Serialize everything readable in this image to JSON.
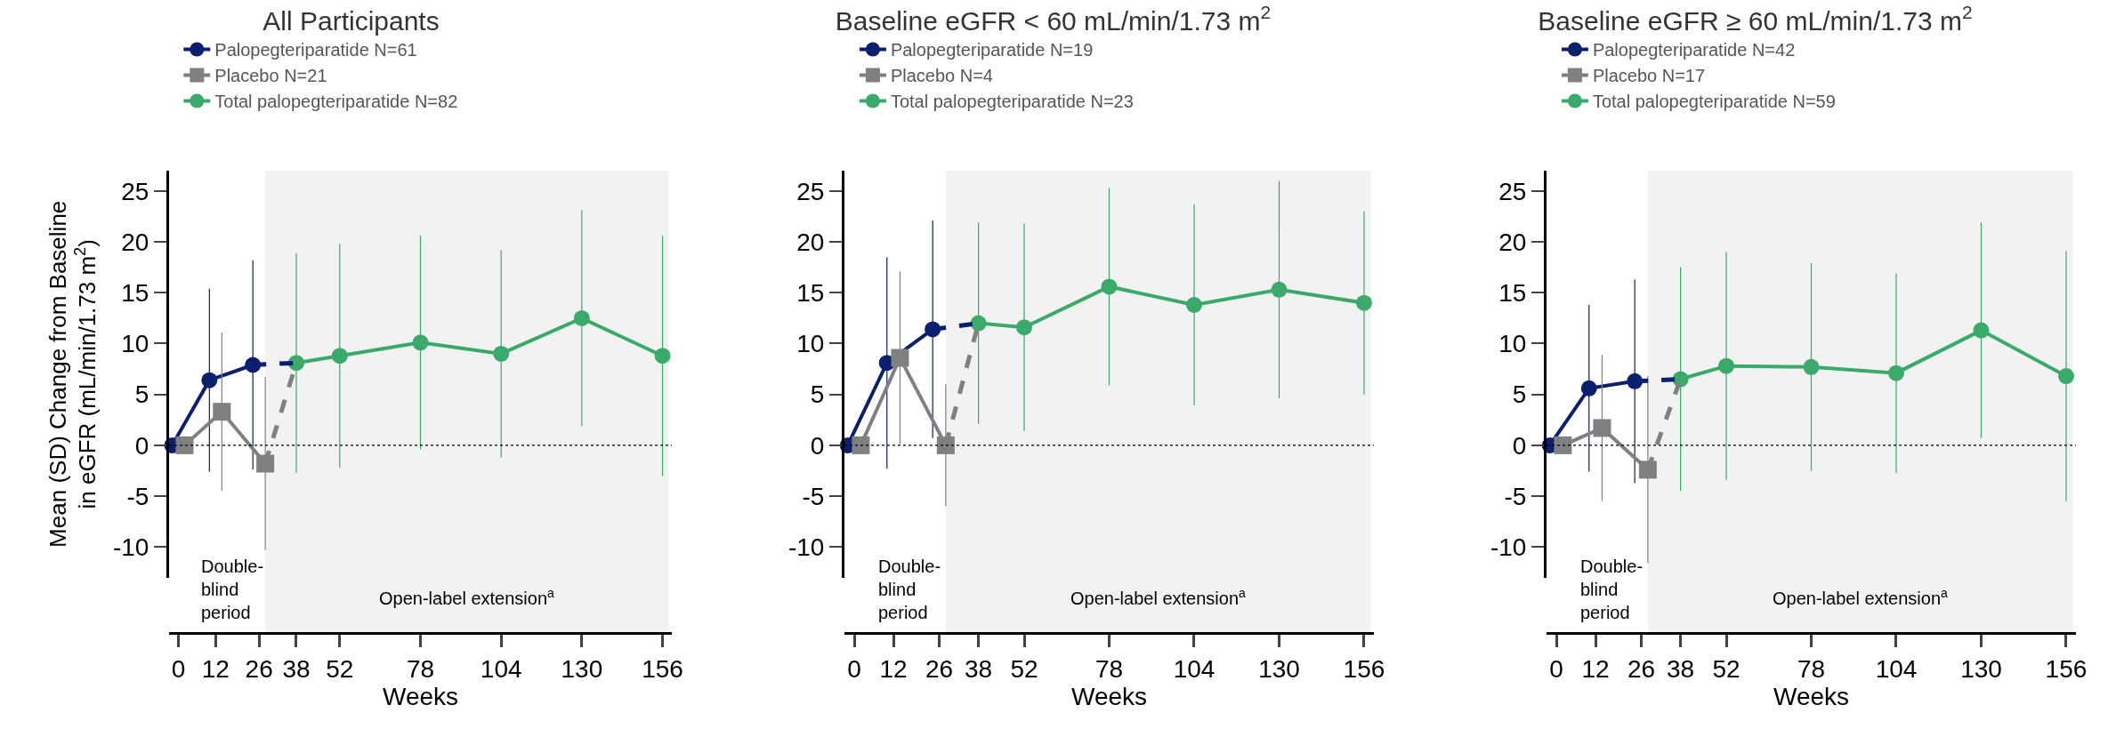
{
  "chart_data": [
    {
      "type": "line",
      "title": "All Participants",
      "xlabel": "Weeks",
      "ylabel": "Mean (SD) Change from Baseline\nin eGFR (mL/min/1.73 m$^{2}$)",
      "xlim": [
        -3,
        159
      ],
      "xticks": [
        0,
        12,
        26,
        38,
        52,
        78,
        104,
        130,
        156
      ],
      "ylim": [
        -13,
        27
      ],
      "yticks": [
        -10,
        -5,
        0,
        5,
        10,
        15,
        20,
        25
      ],
      "grid": false,
      "legend": "top left",
      "series": [
        {
          "name": "Palopegteriparatide N=61",
          "color": "#0a1f6e",
          "marker": "circle",
          "line_style": "solid",
          "x": [
            -2,
            10,
            24
          ],
          "values": [
            0,
            6.4,
            7.9
          ],
          "errors": [
            null,
            9,
            10.3
          ]
        },
        {
          "name": "Placebo N=21",
          "color": "#808080",
          "marker": "square",
          "line_style": "solid",
          "x": [
            2,
            14,
            28
          ],
          "values": [
            0,
            3.3,
            -1.8
          ],
          "errors": [
            null,
            7.8,
            8.5
          ]
        },
        {
          "name": "Total palopegteriparatide N=82",
          "color": "#3aaa6a",
          "marker": "circle",
          "line_style": "solid",
          "x": [
            38,
            52,
            78,
            104,
            130,
            156
          ],
          "values": [
            8.1,
            8.8,
            10.1,
            9.0,
            12.5,
            8.8
          ],
          "errors": [
            10.8,
            11,
            10.5,
            10.2,
            10.6,
            11.8
          ]
        },
        {
          "color": "#0a1f6e",
          "marker": "none",
          "line_style": "dashed",
          "x": [
            24,
            38
          ],
          "values": [
            7.9,
            8.1
          ]
        },
        {
          "color": "#808080",
          "marker": "none",
          "line_style": "dashed",
          "x": [
            28,
            38
          ],
          "values": [
            -1.8,
            8.1
          ]
        }
      ],
      "ref_lines": [
        {
          "axis": "y",
          "value": 0,
          "line_style": "dotted",
          "color": "#000000"
        }
      ],
      "bands": [
        {
          "axis": "x",
          "from": 28,
          "to": 158,
          "color": "#f2f2f2",
          "label": "Open-label extension$^{a}$"
        }
      ],
      "annotations": [
        "Double-\nblind\nperiod"
      ]
    },
    {
      "type": "line",
      "title": "Baseline eGFR < 60 mL/min/1.73 m$^{2}$",
      "xlabel": "Weeks",
      "xlim": [
        -3,
        159
      ],
      "xticks": [
        0,
        12,
        26,
        38,
        52,
        78,
        104,
        130,
        156
      ],
      "ylim": [
        -13,
        27
      ],
      "yticks": [
        -10,
        -5,
        0,
        5,
        10,
        15,
        20,
        25
      ],
      "grid": false,
      "legend": "top left",
      "series": [
        {
          "name": "Palopegteriparatide N=19",
          "color": "#0a1f6e",
          "marker": "circle",
          "line_style": "solid",
          "x": [
            -2,
            10,
            24
          ],
          "values": [
            0,
            8.1,
            11.4
          ],
          "errors": [
            null,
            10.4,
            10.7
          ]
        },
        {
          "name": "Placebo N=4",
          "color": "#808080",
          "marker": "square",
          "line_style": "solid",
          "x": [
            2,
            14,
            28
          ],
          "values": [
            0,
            8.6,
            0
          ],
          "errors": [
            null,
            8.5,
            6
          ]
        },
        {
          "name": "Total palopegteriparatide N=23",
          "color": "#3aaa6a",
          "marker": "circle",
          "line_style": "solid",
          "x": [
            38,
            52,
            78,
            104,
            130,
            156
          ],
          "values": [
            12.0,
            11.6,
            15.6,
            13.8,
            15.3,
            14.0
          ],
          "errors": [
            9.9,
            10.2,
            9.7,
            9.9,
            10.7,
            9
          ]
        },
        {
          "color": "#0a1f6e",
          "marker": "none",
          "line_style": "dashed",
          "x": [
            24,
            38
          ],
          "values": [
            11.4,
            12.0
          ]
        },
        {
          "color": "#808080",
          "marker": "none",
          "line_style": "dashed",
          "x": [
            28,
            38
          ],
          "values": [
            0,
            12.0
          ]
        }
      ],
      "ref_lines": [
        {
          "axis": "y",
          "value": 0,
          "line_style": "dotted",
          "color": "#000000"
        }
      ],
      "bands": [
        {
          "axis": "x",
          "from": 28,
          "to": 158,
          "color": "#f2f2f2",
          "label": "Open-label extension$^{a}$"
        }
      ],
      "annotations": [
        "Double-\nblind\nperiod"
      ]
    },
    {
      "type": "line",
      "title": "Baseline eGFR ≥ 60 mL/min/1.73 m$^{2}$",
      "xlabel": "Weeks",
      "xlim": [
        -3,
        159
      ],
      "xticks": [
        0,
        12,
        26,
        38,
        52,
        78,
        104,
        130,
        156
      ],
      "ylim": [
        -13,
        27
      ],
      "yticks": [
        -10,
        -5,
        0,
        5,
        10,
        15,
        20,
        25
      ],
      "grid": false,
      "legend": "top left",
      "series": [
        {
          "name": "Palopegteriparatide N=42",
          "color": "#0a1f6e",
          "marker": "circle",
          "line_style": "solid",
          "x": [
            -2,
            10,
            24
          ],
          "values": [
            0,
            5.6,
            6.3
          ],
          "errors": [
            null,
            8.2,
            10
          ]
        },
        {
          "name": "Placebo N=17",
          "color": "#808080",
          "marker": "square",
          "line_style": "solid",
          "x": [
            2,
            14,
            28
          ],
          "values": [
            0,
            1.7,
            -2.4
          ],
          "errors": [
            null,
            7.2,
            9.2
          ]
        },
        {
          "name": "Total palopegteriparatide N=59",
          "color": "#3aaa6a",
          "marker": "circle",
          "line_style": "solid",
          "x": [
            38,
            52,
            78,
            104,
            130,
            156
          ],
          "values": [
            6.5,
            7.8,
            7.7,
            7.1,
            11.3,
            6.8
          ],
          "errors": [
            11,
            11.2,
            10.2,
            9.8,
            10.6,
            12.3
          ]
        },
        {
          "color": "#0a1f6e",
          "marker": "none",
          "line_style": "dashed",
          "x": [
            24,
            38
          ],
          "values": [
            6.3,
            6.5
          ]
        },
        {
          "color": "#808080",
          "marker": "none",
          "line_style": "dashed",
          "x": [
            28,
            38
          ],
          "values": [
            -2.4,
            6.5
          ]
        }
      ],
      "ref_lines": [
        {
          "axis": "y",
          "value": 0,
          "line_style": "dotted",
          "color": "#000000"
        }
      ],
      "bands": [
        {
          "axis": "x",
          "from": 28,
          "to": 158,
          "color": "#f2f2f2",
          "label": "Open-label extension$^{a}$"
        }
      ],
      "annotations": [
        "Double-\nblind\nperiod"
      ]
    }
  ]
}
